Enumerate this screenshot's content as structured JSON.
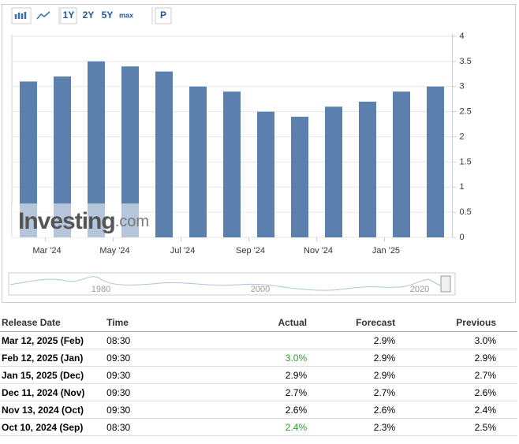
{
  "toolbar": {
    "buttons": [
      "1Y",
      "2Y",
      "5Y",
      "max",
      "P"
    ]
  },
  "chart_data": {
    "type": "bar",
    "categories": [
      "Mar '24",
      null,
      "May '24",
      null,
      "Jul '24",
      null,
      "Sep '24",
      null,
      "Nov '24",
      null,
      "Jan '25",
      null,
      null
    ],
    "values": [
      3.1,
      3.2,
      3.5,
      3.4,
      3.3,
      3.0,
      2.9,
      2.5,
      2.4,
      2.6,
      2.7,
      2.9,
      3.0
    ],
    "color": "#5b80ae",
    "ylim": [
      0,
      4
    ],
    "yticks": [
      0,
      0.5,
      1,
      1.5,
      2,
      2.5,
      3,
      3.5,
      4
    ],
    "grid": true
  },
  "watermark": {
    "brand": "Investing",
    "suffix": ".com"
  },
  "navigator": {
    "labels": [
      "1980",
      "2000",
      "2020"
    ]
  },
  "table": {
    "columns": [
      "Release Date",
      "Time",
      "Actual",
      "Forecast",
      "Previous"
    ],
    "rows": [
      {
        "date": "Mar 12, 2025 (Feb)",
        "time": "08:30",
        "actual": null,
        "actual_color": null,
        "forecast": "2.9%",
        "previous": "3.0%"
      },
      {
        "date": "Feb 12, 2025 (Jan)",
        "time": "09:30",
        "actual": "3.0%",
        "actual_color": "#2a9d2a",
        "forecast": "2.9%",
        "previous": "2.9%"
      },
      {
        "date": "Jan 15, 2025 (Dec)",
        "time": "09:30",
        "actual": "2.9%",
        "actual_color": "#000000",
        "forecast": "2.9%",
        "previous": "2.7%"
      },
      {
        "date": "Dec 11, 2024 (Nov)",
        "time": "09:30",
        "actual": "2.7%",
        "actual_color": "#000000",
        "forecast": "2.7%",
        "previous": "2.6%"
      },
      {
        "date": "Nov 13, 2024 (Oct)",
        "time": "09:30",
        "actual": "2.6%",
        "actual_color": "#000000",
        "forecast": "2.6%",
        "previous": "2.4%"
      },
      {
        "date": "Oct 10, 2024 (Sep)",
        "time": "08:30",
        "actual": "2.4%",
        "actual_color": "#2a9d2a",
        "forecast": "2.3%",
        "previous": "2.5%"
      }
    ]
  }
}
